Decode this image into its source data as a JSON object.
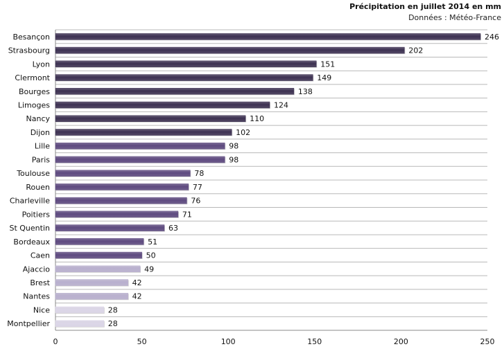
{
  "chart_data": {
    "type": "bar",
    "orientation": "horizontal",
    "title": "Précipitation en juillet 2014 en mm",
    "subtitle": "Données : Météo-France",
    "categories": [
      "Besançon",
      "Strasbourg",
      "Lyon",
      "Clermont",
      "Bourges",
      "Limoges",
      "Nancy",
      "Dijon",
      "Lille",
      "Paris",
      "Toulouse",
      "Rouen",
      "Charleville",
      "Poitiers",
      "St Quentin",
      "Bordeaux",
      "Caen",
      "Ajaccio",
      "Brest",
      "Nantes",
      "Nice",
      "Montpellier"
    ],
    "values": [
      246,
      202,
      151,
      149,
      138,
      124,
      110,
      102,
      98,
      98,
      78,
      77,
      76,
      71,
      63,
      51,
      50,
      49,
      42,
      42,
      28,
      28
    ],
    "xlim": [
      0,
      250
    ],
    "xticks": [
      0,
      50,
      100,
      150,
      200,
      250
    ],
    "grid": "horizontal lines between categories",
    "colors": {
      "dark": "#3d3152",
      "medium": "#5e4a80",
      "light": "#b9b0cf",
      "lighter": "#dcd6e8"
    }
  }
}
